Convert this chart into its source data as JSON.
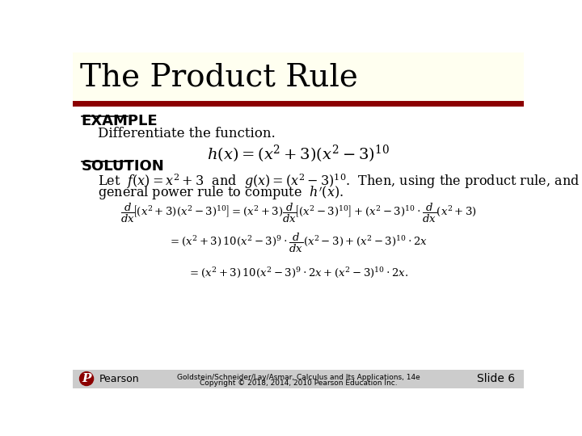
{
  "title": "The Product Rule",
  "title_bg": "#FFFFF0",
  "title_color": "#000000",
  "title_fontsize": 28,
  "divider_color": "#8B0000",
  "body_bg": "#FFFFFF",
  "example_label": "EXAMPLE",
  "example_color": "#000000",
  "example_fontsize": 13,
  "differentiate_text": "Differentiate the function.",
  "solution_label": "SOLUTION",
  "solution_color": "#000000",
  "solution_fontsize": 13,
  "footer_line1": "Goldstein/Schneider/Lay/Asmar, Calculus and Its Applications, 14e",
  "footer_line2": "Copyright © 2018, 2014, 2010 Pearson Education Inc.",
  "slide_text": "Slide 6",
  "footer_color": "#000000",
  "footer_bg": "#CCCCCC"
}
